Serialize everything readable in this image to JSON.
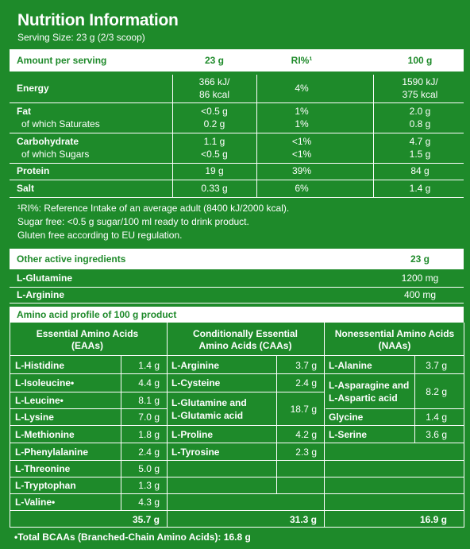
{
  "title": "Nutrition Information",
  "serving_size": "Serving Size: 23 g (2/3 scoop)",
  "header": {
    "label": "Amount per serving",
    "col1": "23 g",
    "col2": "RI%¹",
    "col3": "100 g"
  },
  "energy": {
    "label": "Energy",
    "kj23": "366 kJ/",
    "kcal23": "86 kcal",
    "ri": "4%",
    "kj100": "1590 kJ/",
    "kcal100": "375 kcal"
  },
  "fat": {
    "label": "Fat",
    "v23": "<0.5 g",
    "ri": "1%",
    "v100": "2.0 g"
  },
  "saturates": {
    "label": "of which Saturates",
    "v23": "0.2 g",
    "ri": "1%",
    "v100": "0.8 g"
  },
  "carbohydrate": {
    "label": "Carbohydrate",
    "v23": "1.1 g",
    "ri": "<1%",
    "v100": "4.7 g"
  },
  "sugars": {
    "label": "of which Sugars",
    "v23": "<0.5 g",
    "ri": "<1%",
    "v100": "1.5 g"
  },
  "protein": {
    "label": "Protein",
    "v23": "19 g",
    "ri": "39%",
    "v100": "84 g"
  },
  "salt": {
    "label": "Salt",
    "v23": "0.33 g",
    "ri": "6%",
    "v100": "1.4 g"
  },
  "footnotes": {
    "line1": "¹RI%: Reference Intake of an average adult (8400 kJ/2000 kcal).",
    "line2": "Sugar free: <0.5 g sugar/100 ml ready to drink product.",
    "line3": "Gluten free according to EU regulation."
  },
  "other": {
    "label": "Other active ingredients",
    "amount": "23 g",
    "glutamine": {
      "label": "L-Glutamine",
      "value": "1200 mg"
    },
    "arginine": {
      "label": "L-Arginine",
      "value": "400 mg"
    }
  },
  "amino": {
    "title": "Amino acid profile of 100 g product",
    "eaa_h1": "Essential Amino Acids",
    "eaa_h2": "(EAAs)",
    "caa_h1": "Conditionally Essential",
    "caa_h2": "Amino Acids (CAAs)",
    "naa_h1": "Nonessential Amino Acids",
    "naa_h2": "(NAAs)",
    "eaa": [
      {
        "name": "L-Histidine",
        "value": "1.4 g"
      },
      {
        "name": "L-Isoleucine•",
        "value": "4.4 g"
      },
      {
        "name": "L-Leucine•",
        "value": "8.1 g"
      },
      {
        "name": "L-Lysine",
        "value": "7.0 g"
      },
      {
        "name": "L-Methionine",
        "value": "1.8 g"
      },
      {
        "name": "L-Phenylalanine",
        "value": "2.4 g"
      },
      {
        "name": "L-Threonine",
        "value": "5.0 g"
      },
      {
        "name": "L-Tryptophan",
        "value": "1.3 g"
      },
      {
        "name": "L-Valine•",
        "value": "4.3 g"
      }
    ],
    "caa": {
      "arginine": {
        "name": "L-Arginine",
        "value": "3.7 g"
      },
      "cysteine": {
        "name": "L-Cysteine",
        "value": "2.4 g"
      },
      "glutamine_1": "L-Glutamine and",
      "glutamine_2": "L-Glutamic acid",
      "glutamine_value": "18.7 g",
      "proline": {
        "name": "L-Proline",
        "value": "4.2 g"
      },
      "tyrosine": {
        "name": "L-Tyrosine",
        "value": "2.3 g"
      }
    },
    "naa": {
      "alanine": {
        "name": "L-Alanine",
        "value": "3.7 g"
      },
      "asparagine_1": "L-Asparagine and",
      "asparagine_2": "L-Aspartic acid",
      "asparagine_value": "8.2 g",
      "glycine": {
        "name": "Glycine",
        "value": "1.4 g"
      },
      "serine": {
        "name": "L-Serine",
        "value": "3.6 g"
      }
    },
    "totals": {
      "eaa": "35.7 g",
      "caa": "31.3 g",
      "naa": "16.9 g"
    },
    "bcaa_note": "•Total BCAAs (Branched-Chain Amino Acids): 16.8 g"
  }
}
